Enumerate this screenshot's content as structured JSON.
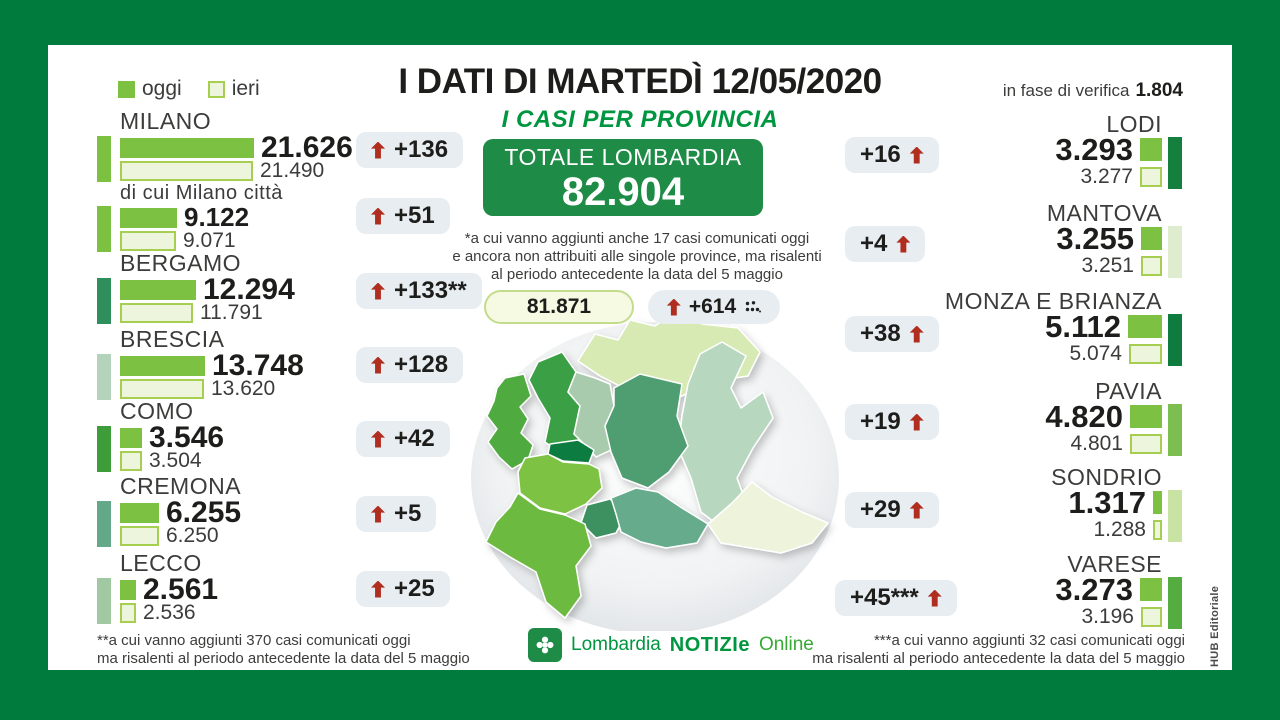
{
  "header": {
    "title": "I DATI DI MARTEDÌ 12/05/2020",
    "subtitle": "I CASI PER PROVINCIA",
    "verifica_label": "in fase di verifica",
    "verifica_value": "1.804",
    "legend": {
      "oggi": "oggi",
      "ieri": "ieri"
    }
  },
  "totale": {
    "label": "TOTALE LOMBARDIA",
    "value": "82.904",
    "note_lines": [
      "*a cui vanno aggiunti anche 17 casi comunicati oggi",
      "e ancora non attribuiti alle singole province, ma risalenti",
      "al periodo antecedente la data del 5 maggio"
    ],
    "yesterday_total": "81.871",
    "daily_increase": "+614"
  },
  "left_provinces": [
    {
      "name": "MILANO",
      "today": "21.626",
      "yesterday": "21.490",
      "delta": "+136",
      "accent": "#7CC142",
      "small": false
    },
    {
      "name": "di cui Milano città",
      "today": "9.122",
      "yesterday": "9.071",
      "delta": "+51",
      "accent": "#7CC142",
      "small": true
    },
    {
      "name": "BERGAMO",
      "today": "12.294",
      "yesterday": "11.791",
      "delta": "+133**",
      "accent": "#2E8F5C",
      "small": false
    },
    {
      "name": "BRESCIA",
      "today": "13.748",
      "yesterday": "13.620",
      "delta": "+128",
      "accent": "#B3D4BB",
      "small": false
    },
    {
      "name": "COMO",
      "today": "3.546",
      "yesterday": "3.504",
      "delta": "+42",
      "accent": "#3F9C3B",
      "small": false
    },
    {
      "name": "CREMONA",
      "today": "6.255",
      "yesterday": "6.250",
      "delta": "+5",
      "accent": "#63A888",
      "small": false
    },
    {
      "name": "LECCO",
      "today": "2.561",
      "yesterday": "2.536",
      "delta": "+25",
      "accent": "#A0C8A1",
      "small": false
    }
  ],
  "right_provinces": [
    {
      "name": "LODI",
      "today": "3.293",
      "yesterday": "3.277",
      "delta": "+16",
      "accent": "#15803D"
    },
    {
      "name": "MANTOVA",
      "today": "3.255",
      "yesterday": "3.251",
      "delta": "+4",
      "accent": "#DFEDCE"
    },
    {
      "name": "MONZA E BRIANZA",
      "today": "5.112",
      "yesterday": "5.074",
      "delta": "+38",
      "accent": "#0F7C3F"
    },
    {
      "name": "PAVIA",
      "today": "4.820",
      "yesterday": "4.801",
      "delta": "+19",
      "accent": "#7CBE4F"
    },
    {
      "name": "SONDRIO",
      "today": "1.317",
      "yesterday": "1.288",
      "delta": "+29",
      "accent": "#C8E3A4"
    },
    {
      "name": "VARESE",
      "today": "3.273",
      "yesterday": "3.196",
      "delta": "+45***",
      "accent": "#55AC41"
    }
  ],
  "footnotes": {
    "left": [
      "**a cui vanno aggiunti 370 casi comunicati oggi",
      "ma risalenti al periodo antecedente la data del 5 maggio"
    ],
    "right": [
      "***a cui vanno aggiunti 32 casi comunicati oggi",
      "ma risalenti al periodo antecedente la data del 5 maggio"
    ]
  },
  "logo": {
    "part1": "Lombardia",
    "part2": "NOTIZIe",
    "part3": "Online"
  },
  "credits": "HUB Editoriale",
  "colors": {
    "frame": "#007B3E",
    "green": "#009640",
    "totale_bg": "#1E8C46",
    "oggi": "#7CC142",
    "ieri_fill": "#EDF5DC",
    "ieri_border": "#A6CE50",
    "pill_bg": "#E7EDF1",
    "yesterday_pill_bg": "#F6FAE3",
    "yesterday_pill_border": "#C3DC8B",
    "arrow_red": "#B02E20"
  },
  "map": {
    "sondrio": "#D7EAB4",
    "brescia": "#B8D7BF",
    "mantova": "#EDF4DB",
    "como": "#3AA044",
    "lecco": "#A9CBAD",
    "bergamo": "#4F9E72",
    "varese": "#4FAA3F",
    "monza": "#0F7C3F",
    "milano": "#7DC242",
    "lodi": "#3E9160",
    "cremona": "#66AB8B",
    "pavia": "#6CBA40"
  },
  "chart_data": {
    "type": "bar",
    "title": "I DATI DI MARTEDÌ 12/05/2020 — I CASI PER PROVINCIA",
    "categories": [
      "MILANO",
      "di cui Milano città",
      "BERGAMO",
      "BRESCIA",
      "COMO",
      "CREMONA",
      "LECCO",
      "LODI",
      "MANTOVA",
      "MONZA E BRIANZA",
      "PAVIA",
      "SONDRIO",
      "VARESE"
    ],
    "series": [
      {
        "name": "oggi",
        "values": [
          21626,
          9122,
          12294,
          13748,
          3546,
          6255,
          2561,
          3293,
          3255,
          5112,
          4820,
          1317,
          3273
        ]
      },
      {
        "name": "ieri",
        "values": [
          21490,
          9071,
          11791,
          13620,
          3504,
          6250,
          2536,
          3277,
          3251,
          5074,
          4801,
          1288,
          3196
        ]
      },
      {
        "name": "variazione",
        "values": [
          136,
          51,
          133,
          128,
          42,
          5,
          25,
          16,
          4,
          38,
          19,
          29,
          45
        ]
      }
    ],
    "total": {
      "label": "TOTALE LOMBARDIA",
      "today": 82904,
      "yesterday": 81871,
      "delta": 614,
      "in_fase_di_verifica": 1804
    },
    "legend_position": "top-left",
    "grid": false
  }
}
